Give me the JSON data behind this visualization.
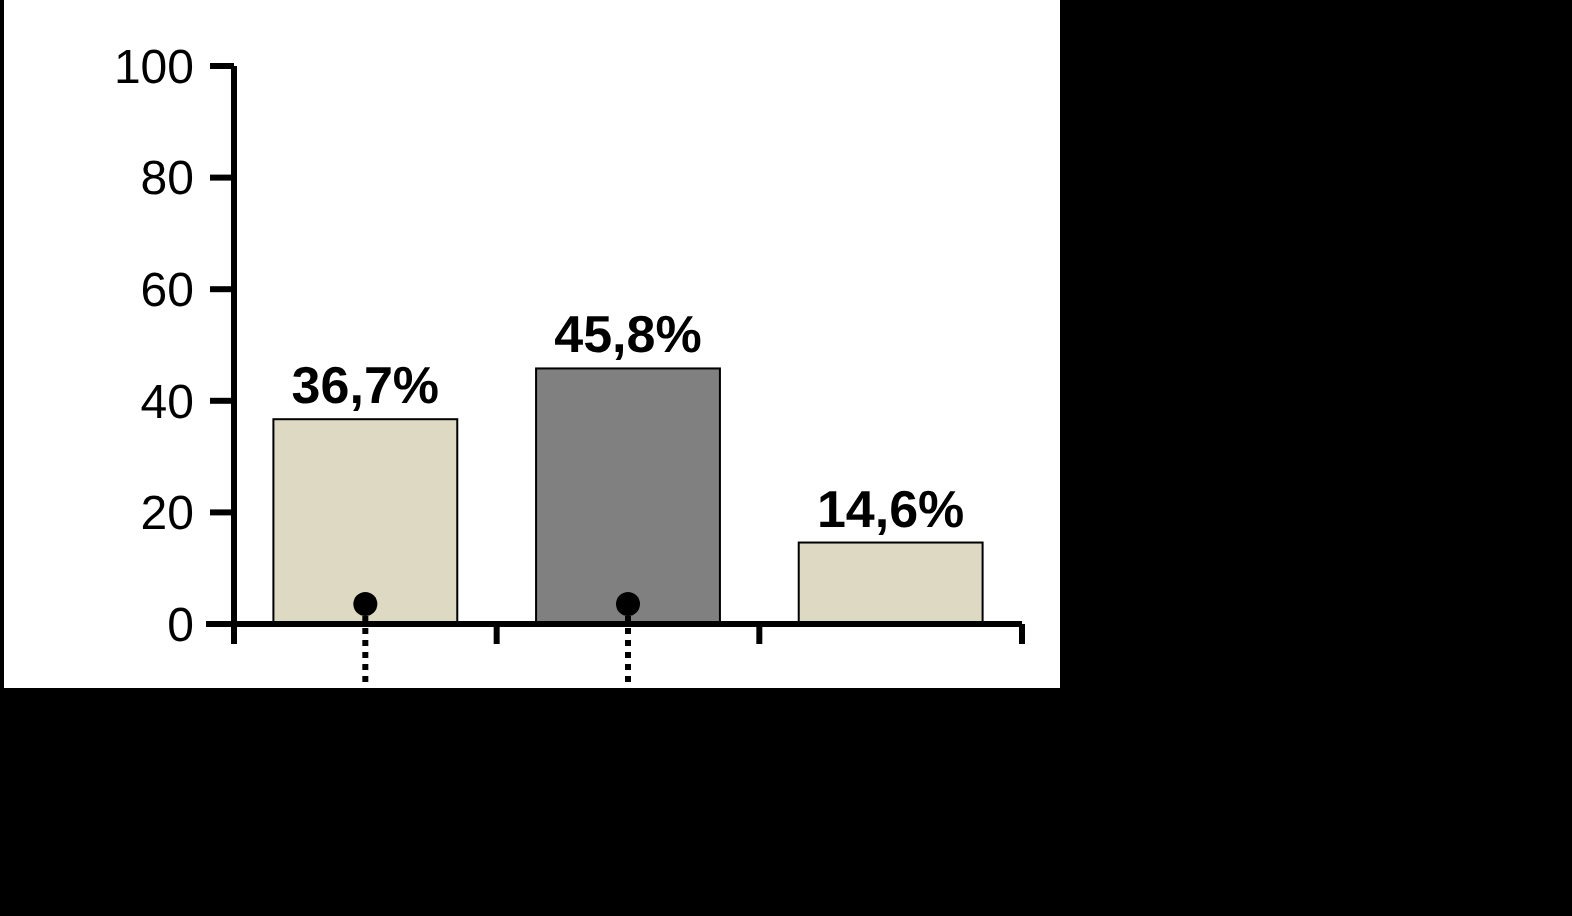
{
  "chart_data": {
    "type": "bar",
    "categories": [
      null,
      null,
      null
    ],
    "values": [
      36.7,
      45.8,
      14.6
    ],
    "colors": [
      "#ddd9c3",
      "#808080",
      "#ddd9c3"
    ],
    "value_labels": [
      "36,7%",
      "45,8%",
      "14,6%"
    ],
    "ylim": [
      0,
      100
    ],
    "yticks": [
      0,
      20,
      40,
      60,
      80,
      100
    ]
  }
}
